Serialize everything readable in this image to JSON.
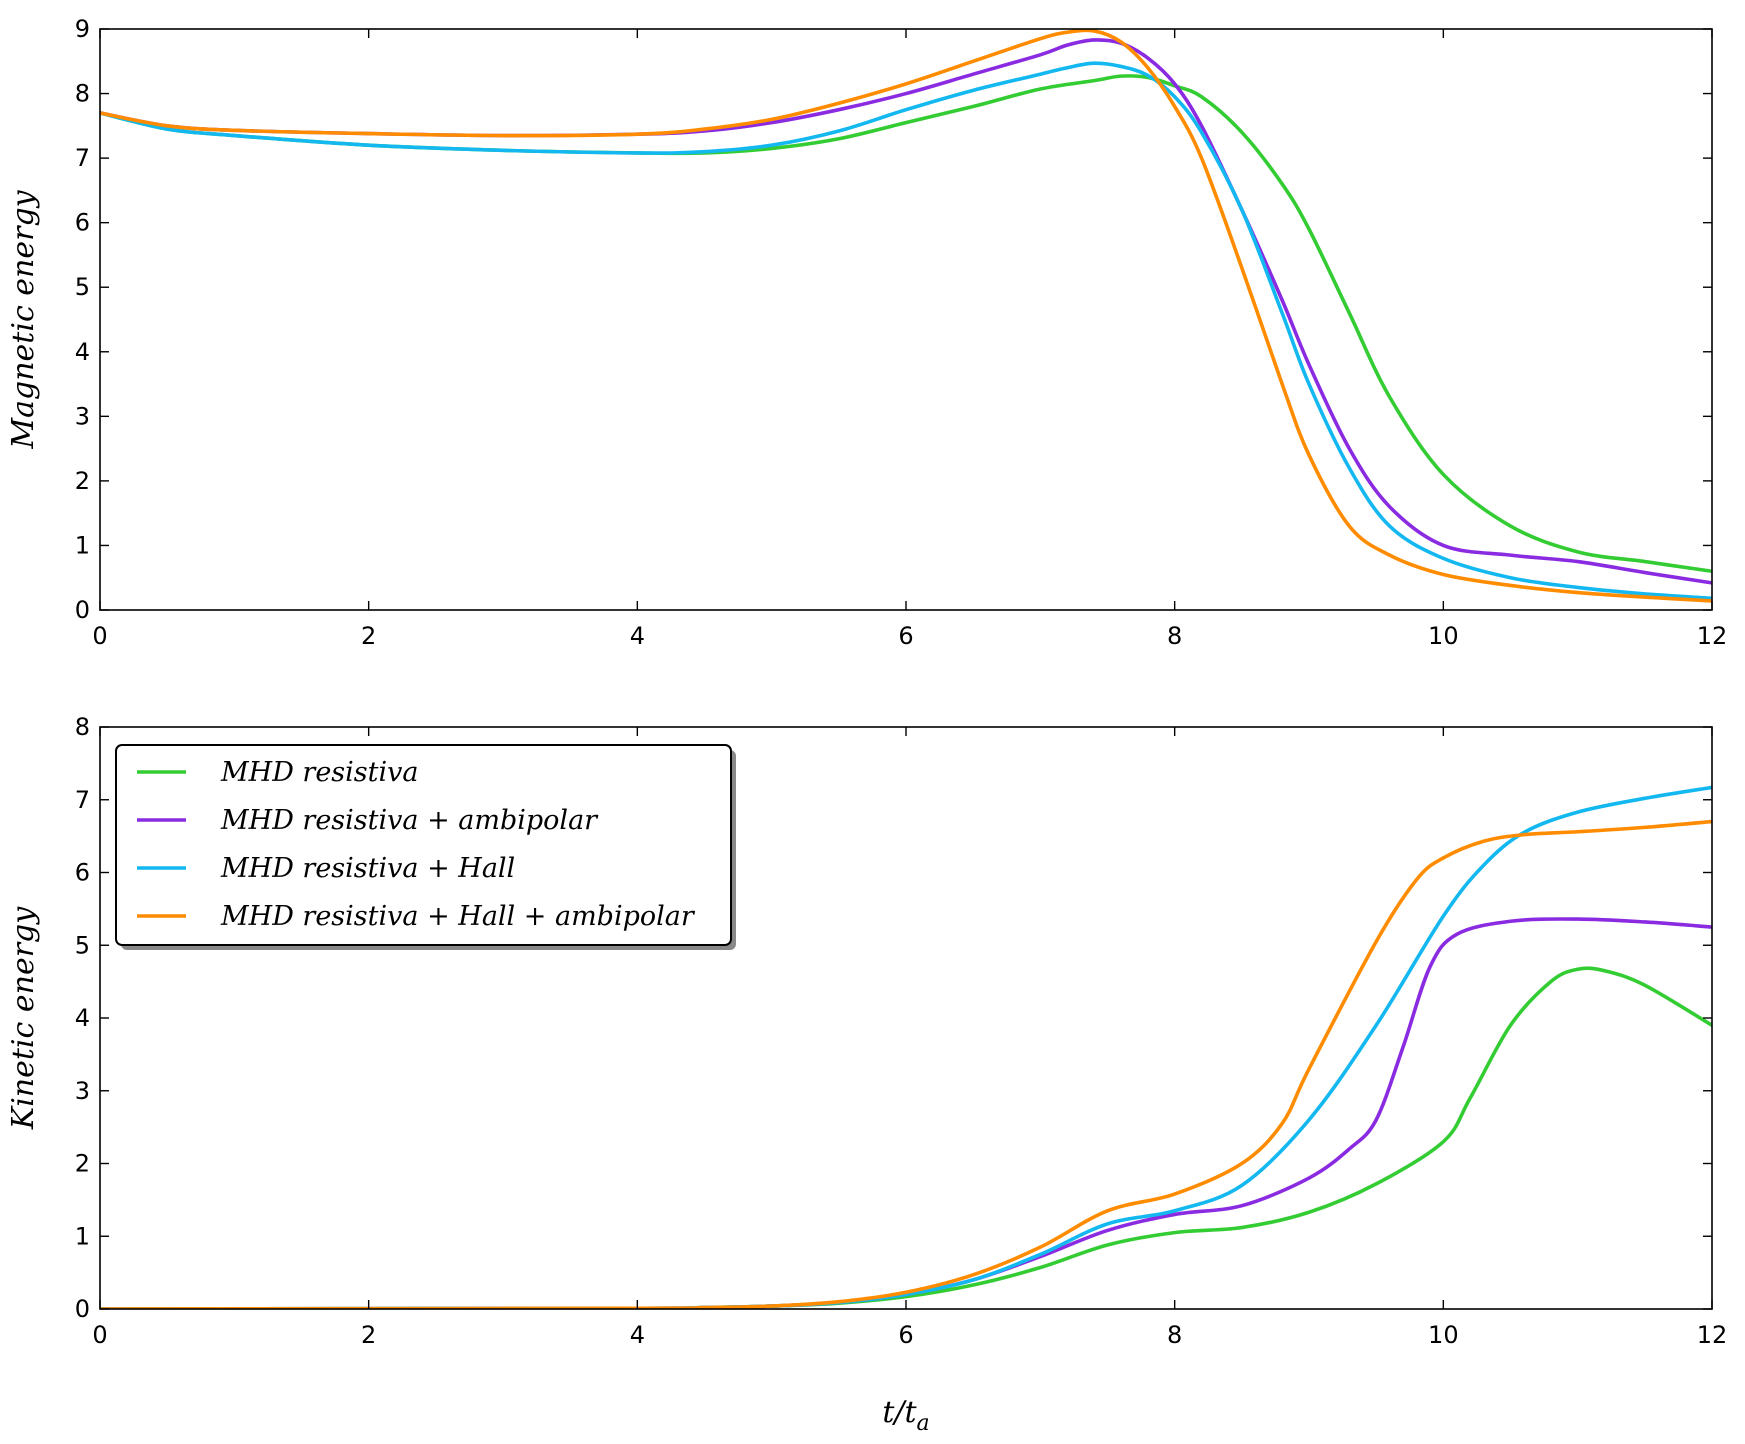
{
  "chart_data": [
    {
      "type": "line",
      "ylabel": "Magnetic energy",
      "xlabel": "",
      "xlim": [
        0,
        12
      ],
      "ylim": [
        0,
        9
      ],
      "xticks": [
        "0",
        "2",
        "4",
        "6",
        "8",
        "10",
        "12"
      ],
      "yticks": [
        "0",
        "1",
        "2",
        "3",
        "4",
        "5",
        "6",
        "7",
        "8",
        "9"
      ],
      "grid": false,
      "series": [
        {
          "name": "MHD resistiva",
          "color": "#33cc33",
          "x": [
            0,
            0.5,
            1,
            2,
            3,
            4,
            4.5,
            5,
            5.5,
            6,
            6.5,
            7,
            7.4,
            7.6,
            7.8,
            8,
            8.2,
            8.5,
            8.8,
            9,
            9.3,
            9.6,
            10,
            10.5,
            11,
            11.5,
            12
          ],
          "y": [
            7.7,
            7.45,
            7.35,
            7.2,
            7.12,
            7.08,
            7.08,
            7.15,
            7.3,
            7.55,
            7.8,
            8.07,
            8.2,
            8.27,
            8.25,
            8.12,
            7.95,
            7.4,
            6.6,
            5.9,
            4.6,
            3.3,
            2.1,
            1.3,
            0.9,
            0.75,
            0.6
          ]
        },
        {
          "name": "MHD resistiva + ambipolar",
          "color": "#8a2be2",
          "x": [
            0,
            0.5,
            1,
            2,
            3,
            4,
            4.5,
            5,
            5.5,
            6,
            6.5,
            7,
            7.2,
            7.4,
            7.6,
            7.8,
            8,
            8.2,
            8.5,
            8.8,
            9,
            9.3,
            9.6,
            10,
            10.5,
            11,
            11.5,
            12
          ],
          "y": [
            7.7,
            7.5,
            7.43,
            7.38,
            7.35,
            7.37,
            7.42,
            7.55,
            7.75,
            8.0,
            8.3,
            8.6,
            8.75,
            8.83,
            8.78,
            8.55,
            8.15,
            7.5,
            6.2,
            4.8,
            3.8,
            2.5,
            1.6,
            1.0,
            0.85,
            0.75,
            0.58,
            0.42
          ]
        },
        {
          "name": "MHD resistiva + Hall",
          "color": "#14b8f0",
          "x": [
            0,
            0.5,
            1,
            2,
            3,
            4,
            4.5,
            5,
            5.5,
            6,
            6.5,
            7,
            7.2,
            7.4,
            7.6,
            7.8,
            8,
            8.2,
            8.5,
            8.8,
            9,
            9.3,
            9.6,
            10,
            10.5,
            11,
            11.5,
            12
          ],
          "y": [
            7.7,
            7.45,
            7.35,
            7.2,
            7.12,
            7.08,
            7.1,
            7.2,
            7.42,
            7.75,
            8.05,
            8.3,
            8.4,
            8.47,
            8.42,
            8.28,
            7.95,
            7.4,
            6.2,
            4.6,
            3.5,
            2.2,
            1.3,
            0.8,
            0.5,
            0.35,
            0.25,
            0.18
          ]
        },
        {
          "name": "MHD resistiva + Hall + ambipolar",
          "color": "#ff8c00",
          "x": [
            0,
            0.5,
            1,
            2,
            3,
            4,
            4.5,
            5,
            5.5,
            6,
            6.5,
            7,
            7.2,
            7.4,
            7.6,
            7.8,
            8,
            8.2,
            8.5,
            8.8,
            9,
            9.3,
            9.6,
            10,
            10.5,
            11,
            11.5,
            12
          ],
          "y": [
            7.7,
            7.5,
            7.43,
            7.38,
            7.35,
            7.37,
            7.45,
            7.6,
            7.85,
            8.15,
            8.5,
            8.85,
            8.95,
            8.97,
            8.8,
            8.4,
            7.8,
            7.0,
            5.3,
            3.5,
            2.4,
            1.3,
            0.85,
            0.55,
            0.38,
            0.27,
            0.2,
            0.14
          ]
        }
      ]
    },
    {
      "type": "line",
      "ylabel": "Kinetic energy",
      "xlabel": "t/t_a",
      "xlim": [
        0,
        12
      ],
      "ylim": [
        0,
        8
      ],
      "xticks": [
        "0",
        "2",
        "4",
        "6",
        "8",
        "10",
        "12"
      ],
      "yticks": [
        "0",
        "1",
        "2",
        "3",
        "4",
        "5",
        "6",
        "7",
        "8"
      ],
      "grid": false,
      "legend": "upper-left",
      "series": [
        {
          "name": "MHD resistiva",
          "color": "#33cc33",
          "x": [
            0,
            4,
            4.5,
            5,
            5.5,
            6,
            6.5,
            7,
            7.5,
            8,
            8.5,
            9,
            9.5,
            10,
            10.2,
            10.5,
            10.8,
            11,
            11.2,
            11.5,
            12
          ],
          "y": [
            0,
            0.01,
            0.02,
            0.04,
            0.08,
            0.17,
            0.33,
            0.57,
            0.88,
            1.05,
            1.12,
            1.33,
            1.72,
            2.3,
            2.9,
            3.9,
            4.5,
            4.67,
            4.65,
            4.45,
            3.9
          ]
        },
        {
          "name": "MHD resistiva + ambipolar",
          "color": "#8a2be2",
          "x": [
            0,
            4,
            4.5,
            5,
            5.5,
            6,
            6.5,
            7,
            7.5,
            8,
            8.5,
            9,
            9.3,
            9.5,
            9.7,
            9.9,
            10.1,
            10.5,
            11,
            11.5,
            12
          ],
          "y": [
            0,
            0.01,
            0.02,
            0.04,
            0.09,
            0.2,
            0.4,
            0.72,
            1.08,
            1.3,
            1.42,
            1.8,
            2.2,
            2.6,
            3.6,
            4.7,
            5.15,
            5.33,
            5.36,
            5.32,
            5.25
          ]
        },
        {
          "name": "MHD resistiva + Hall",
          "color": "#14b8f0",
          "x": [
            0,
            4,
            4.5,
            5,
            5.5,
            6,
            6.5,
            7,
            7.5,
            8,
            8.5,
            9,
            9.5,
            10,
            10.3,
            10.6,
            11,
            11.5,
            12
          ],
          "y": [
            0,
            0.01,
            0.02,
            0.04,
            0.09,
            0.2,
            0.4,
            0.75,
            1.17,
            1.35,
            1.7,
            2.6,
            3.9,
            5.4,
            6.1,
            6.55,
            6.83,
            7.02,
            7.17
          ]
        },
        {
          "name": "MHD resistiva + Hall + ambipolar",
          "color": "#ff8c00",
          "x": [
            0,
            4,
            4.5,
            5,
            5.5,
            6,
            6.5,
            7,
            7.5,
            8,
            8.5,
            8.8,
            9,
            9.5,
            9.8,
            10,
            10.3,
            10.6,
            11,
            11.5,
            12
          ],
          "y": [
            0,
            0.01,
            0.02,
            0.04,
            0.1,
            0.23,
            0.47,
            0.85,
            1.35,
            1.58,
            2.0,
            2.55,
            3.3,
            5.05,
            5.9,
            6.2,
            6.43,
            6.52,
            6.56,
            6.62,
            6.7
          ]
        }
      ]
    }
  ]
}
